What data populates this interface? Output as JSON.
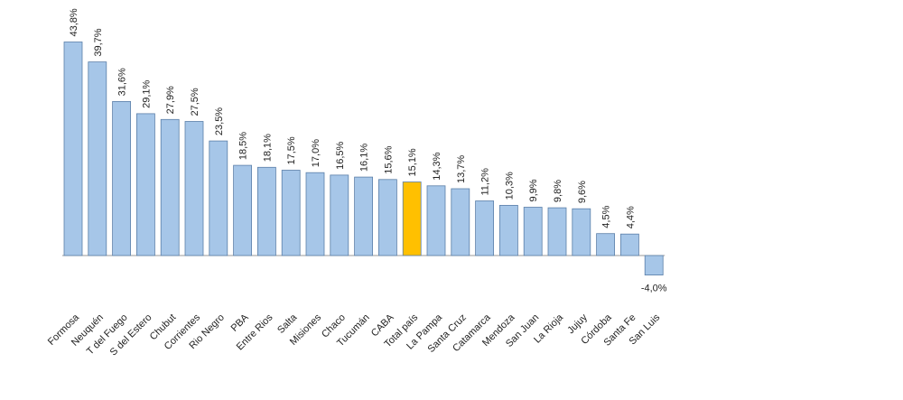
{
  "chart_data": {
    "type": "bar",
    "title": "",
    "xlabel": "",
    "ylabel": "",
    "ylim": [
      -4.0,
      43.8
    ],
    "grid": false,
    "legend": "none",
    "colors": {
      "default": "#a6c6e8",
      "highlight": "#ffc000",
      "border": "#5b7fa8",
      "axis": "#999999"
    },
    "highlight_index": 14,
    "categories": [
      "Formosa",
      "Neuquén",
      "T del Fuego",
      "S del Estero",
      "Chubut",
      "Corrientes",
      "Rio Negro",
      "PBA",
      "Entre Rios",
      "Salta",
      "Misiones",
      "Chaco",
      "Tucumán",
      "CABA",
      "Total país",
      "La Pampa",
      "Santa Cruz",
      "Catamarca",
      "Mendoza",
      "San Juan",
      "La Rioja",
      "Jujuy",
      "Córdoba",
      "Santa Fe",
      "San Luis"
    ],
    "values": [
      43.8,
      39.7,
      31.6,
      29.1,
      27.9,
      27.5,
      23.5,
      18.5,
      18.1,
      17.5,
      17.0,
      16.5,
      16.1,
      15.6,
      15.1,
      14.3,
      13.7,
      11.2,
      10.3,
      9.9,
      9.8,
      9.6,
      4.5,
      4.4,
      -4.0
    ],
    "value_labels": [
      "43,8%",
      "39,7%",
      "31,6%",
      "29,1%",
      "27,9%",
      "27,5%",
      "23,5%",
      "18,5%",
      "18,1%",
      "17,5%",
      "17,0%",
      "16,5%",
      "16,1%",
      "15,6%",
      "15,1%",
      "14,3%",
      "13,7%",
      "11,2%",
      "10,3%",
      "9,9%",
      "9,8%",
      "9,6%",
      "4,5%",
      "4,4%",
      "-4,0%"
    ]
  }
}
